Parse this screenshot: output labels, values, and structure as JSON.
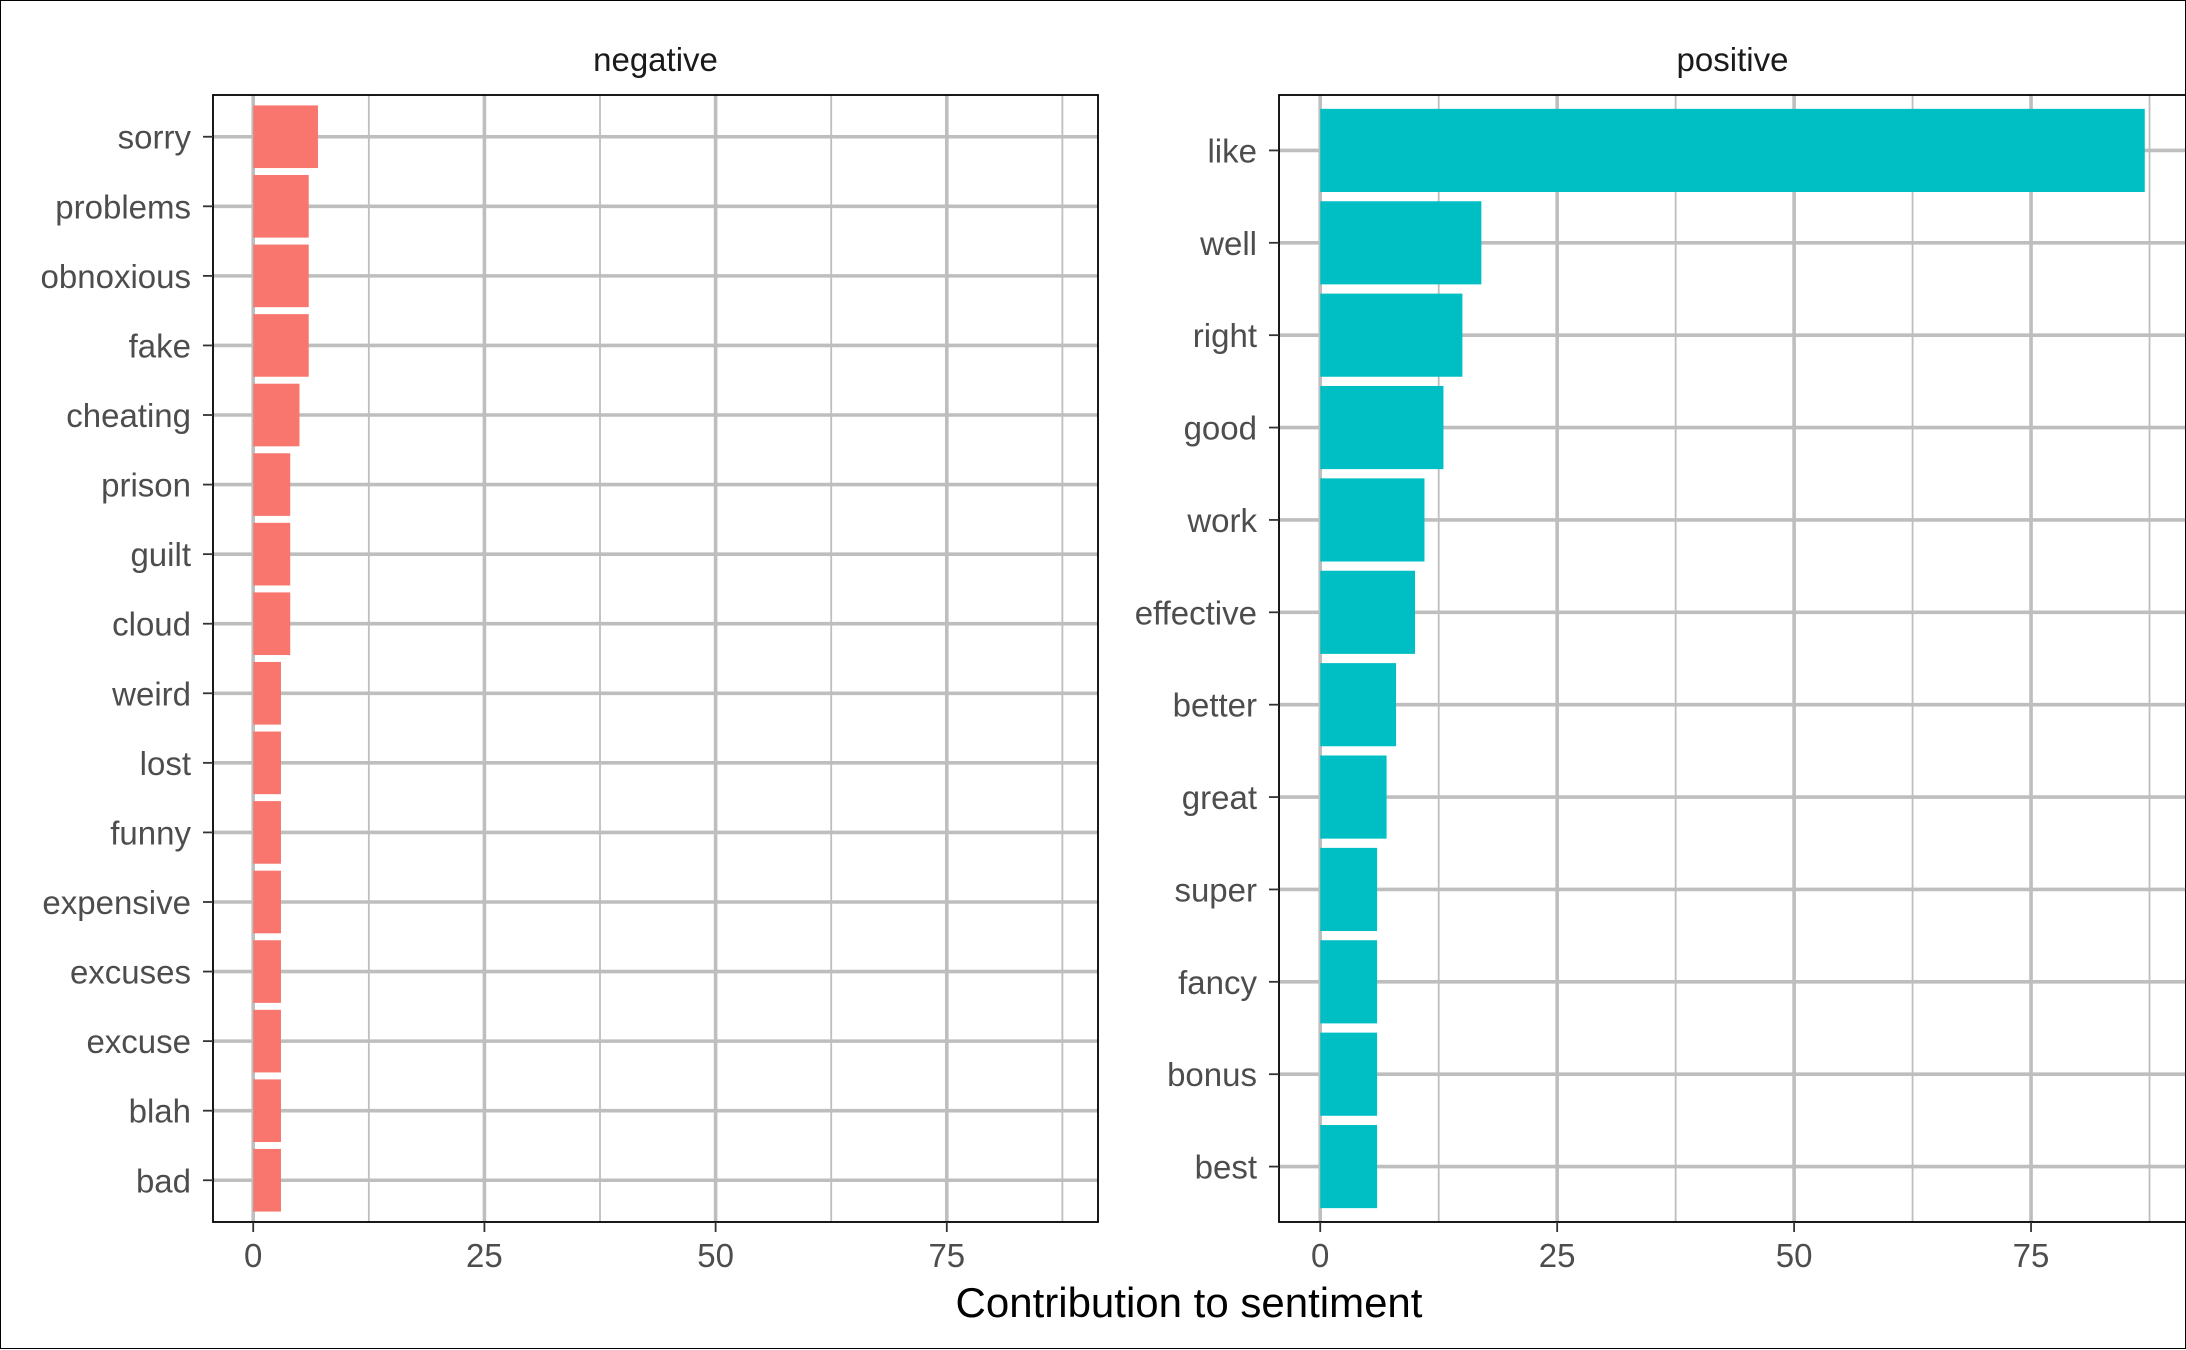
{
  "chart_data": {
    "type": "bar",
    "orientation": "horizontal",
    "xlabel": "Contribution to sentiment",
    "ylabel": "",
    "facets": [
      {
        "title": "negative",
        "color": "#F8766D",
        "xlim": [
          0,
          87
        ],
        "ticks": [
          0,
          25,
          50,
          75
        ],
        "tick_labels": [
          "0",
          "25",
          "50",
          "75"
        ],
        "categories": [
          "sorry",
          "problems",
          "obnoxious",
          "fake",
          "cheating",
          "prison",
          "guilt",
          "cloud",
          "weird",
          "lost",
          "funny",
          "expensive",
          "excuses",
          "excuse",
          "blah",
          "bad"
        ],
        "values": [
          7,
          6,
          6,
          6,
          5,
          4,
          4,
          4,
          3,
          3,
          3,
          3,
          3,
          3,
          3,
          3
        ]
      },
      {
        "title": "positive",
        "color": "#00BFC4",
        "xlim": [
          0,
          87
        ],
        "ticks": [
          0,
          25,
          50,
          75
        ],
        "tick_labels": [
          "0",
          "25",
          "50",
          "75"
        ],
        "categories": [
          "like",
          "well",
          "right",
          "good",
          "work",
          "effective",
          "better",
          "great",
          "super",
          "fancy",
          "bonus",
          "best"
        ],
        "values": [
          87,
          17,
          15,
          13,
          11,
          10,
          8,
          7,
          6,
          6,
          6,
          6
        ]
      }
    ]
  }
}
